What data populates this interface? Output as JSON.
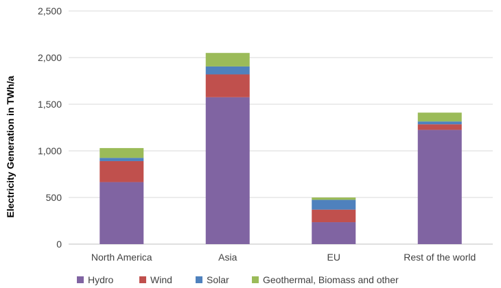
{
  "chart_data": {
    "type": "bar",
    "stacked": true,
    "title": "",
    "xlabel": "",
    "ylabel": "Electricity Generation in TWh/a",
    "ylim": [
      0,
      2500
    ],
    "yticks": [
      0,
      500,
      1000,
      1500,
      2000,
      2500
    ],
    "ytick_labels": [
      "0",
      "500",
      "1,000",
      "1,500",
      "2,000",
      "2,500"
    ],
    "grid": true,
    "legend_position": "bottom",
    "categories": [
      "North America",
      "Asia",
      "EU",
      "Rest of the world"
    ],
    "series": [
      {
        "name": "Hydro",
        "color": "#8064a2",
        "values": [
          665,
          1575,
          235,
          1225
        ]
      },
      {
        "name": "Wind",
        "color": "#c0504d",
        "values": [
          225,
          245,
          135,
          60
        ]
      },
      {
        "name": "Solar",
        "color": "#4f81bd",
        "values": [
          35,
          85,
          105,
          30
        ]
      },
      {
        "name": "Geothermal, Biomass and other",
        "color": "#9bbb59",
        "values": [
          105,
          145,
          25,
          95
        ]
      }
    ]
  }
}
